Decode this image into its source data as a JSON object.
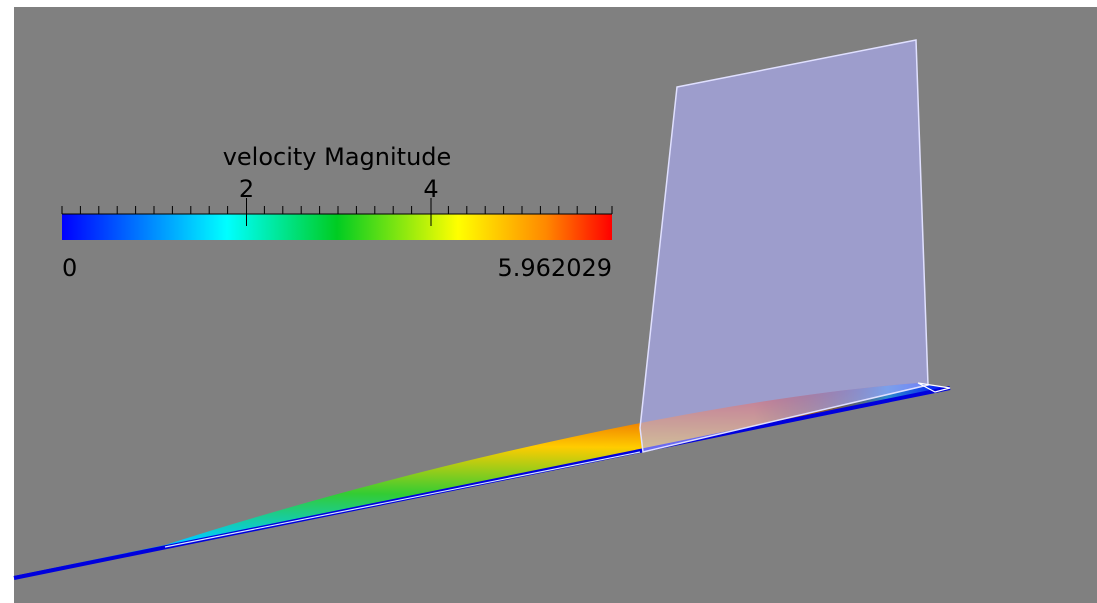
{
  "colorbar": {
    "title": "velocity Magnitude",
    "range": {
      "min": 0,
      "max": 5.962029
    },
    "ticks": [
      2,
      4
    ]
  }
}
